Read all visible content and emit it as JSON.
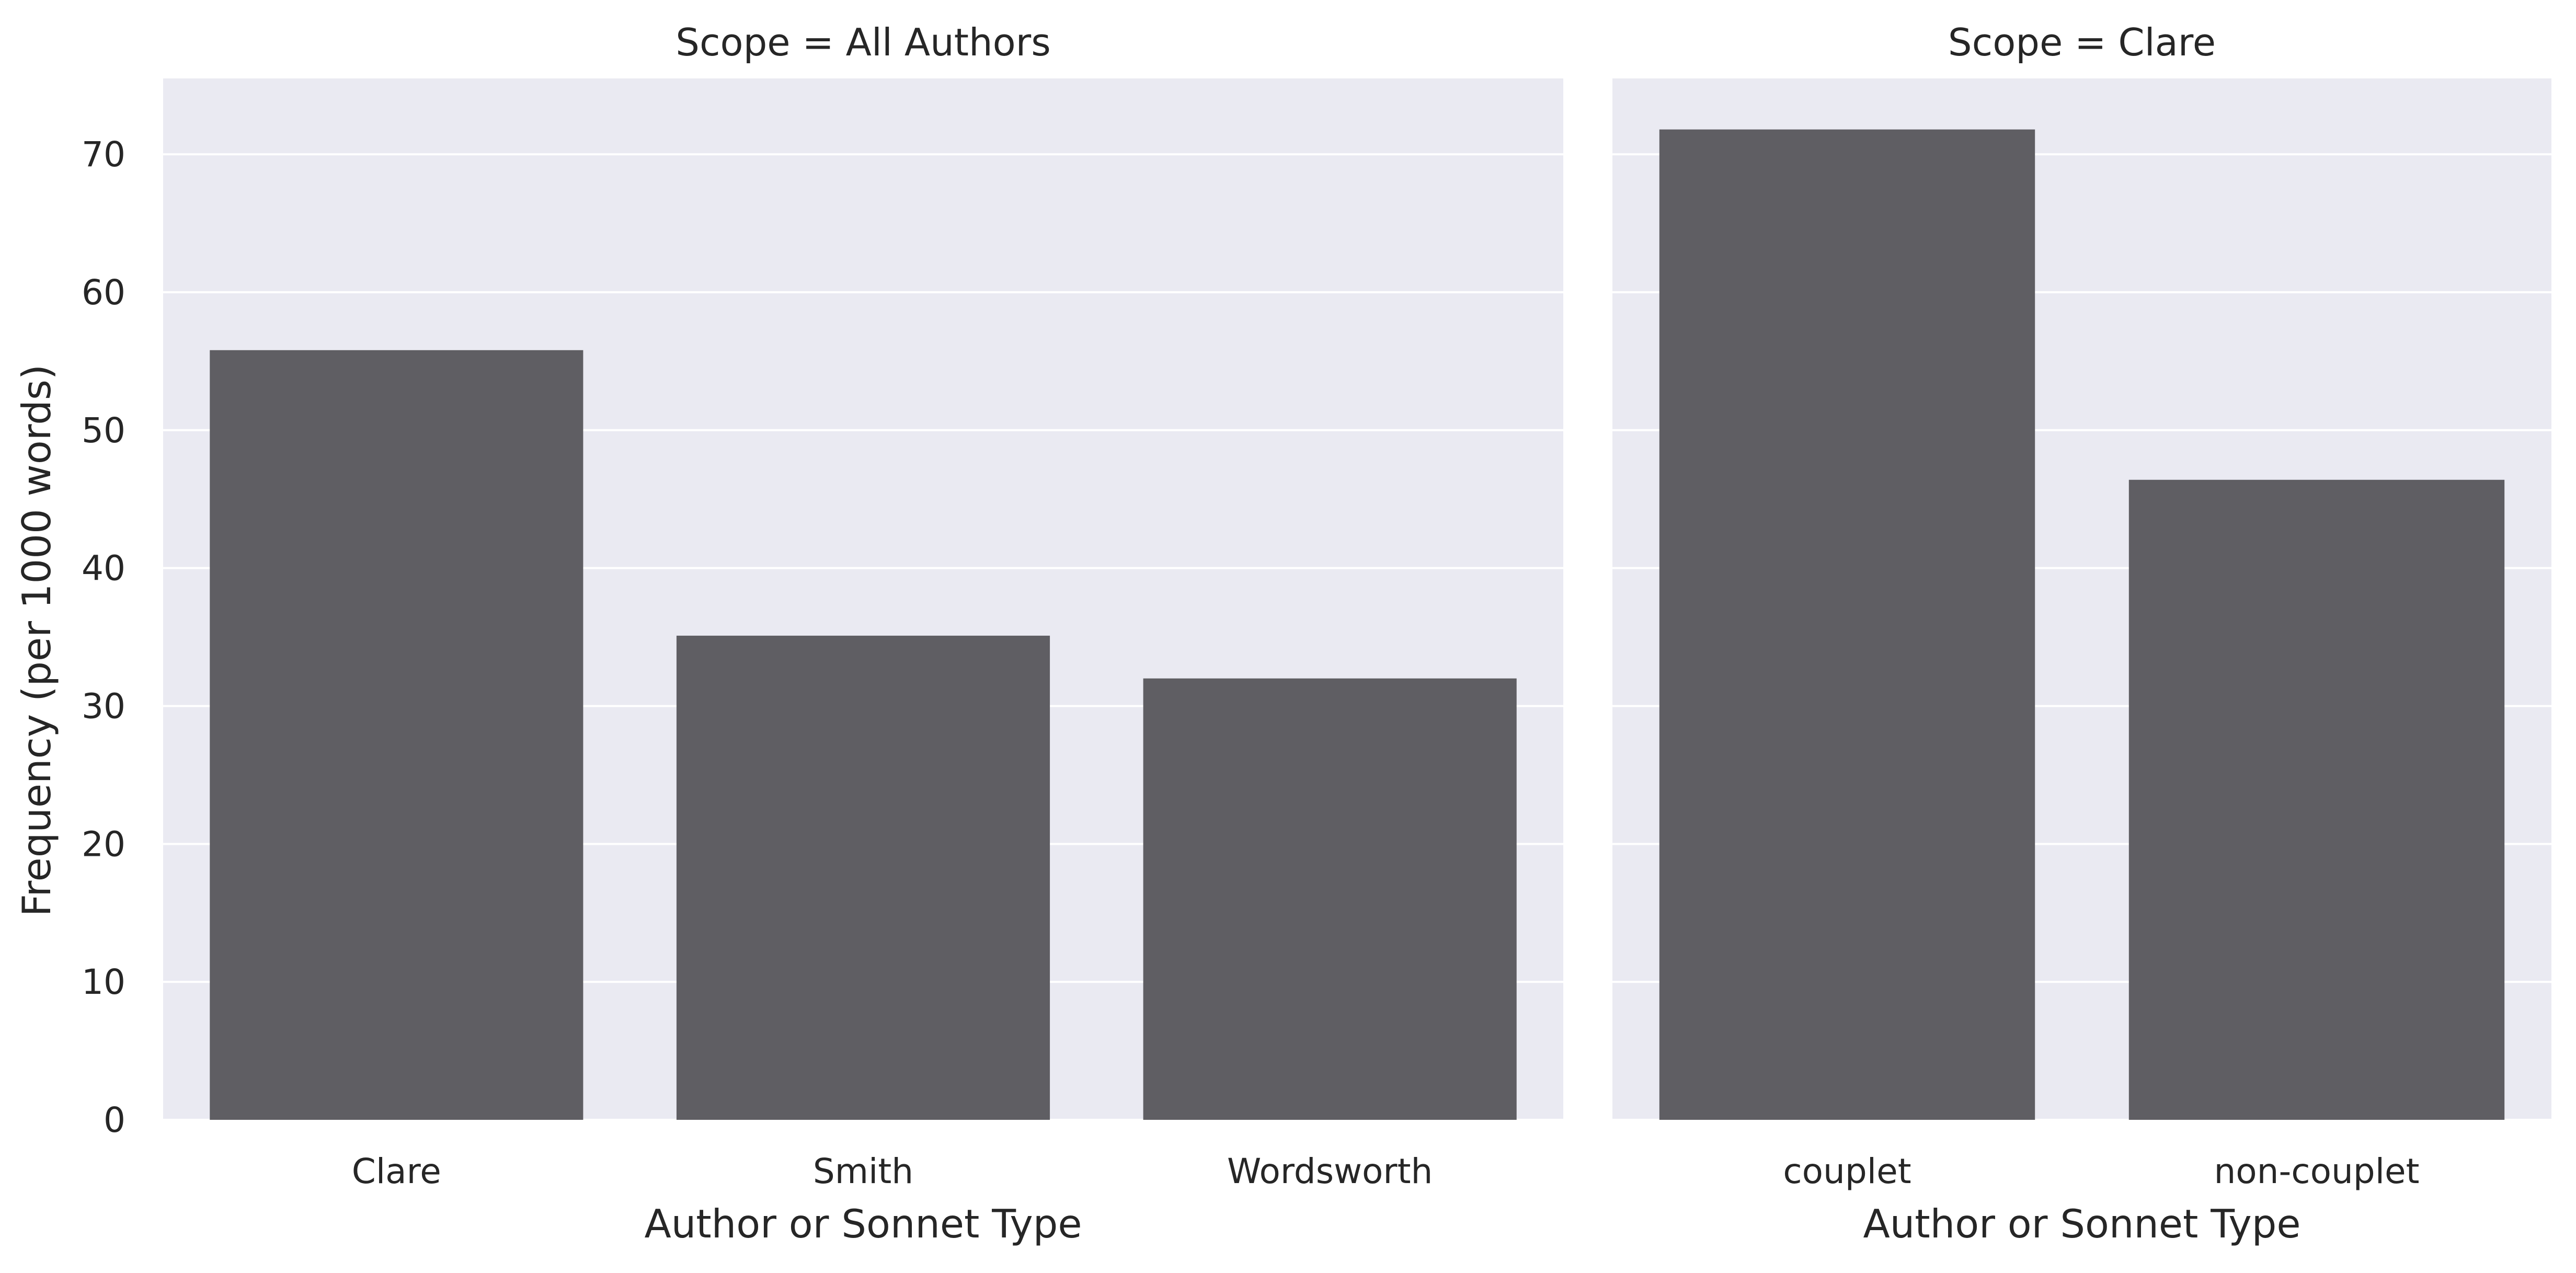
{
  "colors": {
    "background": "#ffffff",
    "panel": "#eaeaf2",
    "grid": "#ffffff",
    "bar": "#5f5e63",
    "text": "#262626"
  },
  "chart_data": [
    {
      "type": "bar",
      "title": "Scope = All Authors",
      "xlabel": "Author or Sonnet Type",
      "ylabel": "Frequency (per 1000 words)",
      "categories": [
        "Clare",
        "Smith",
        "Wordsworth"
      ],
      "values": [
        55.8,
        35.1,
        32.0
      ],
      "ylim": [
        0,
        75.5
      ],
      "yticks": [
        "0",
        "10",
        "20",
        "30",
        "40",
        "50",
        "60",
        "70"
      ],
      "grid": true
    },
    {
      "type": "bar",
      "title": "Scope = Clare",
      "xlabel": "Author or Sonnet Type",
      "ylabel": "",
      "categories": [
        "couplet",
        "non-couplet"
      ],
      "values": [
        71.8,
        46.4
      ],
      "ylim": [
        0,
        75.5
      ],
      "yticks": [],
      "grid": true
    }
  ]
}
